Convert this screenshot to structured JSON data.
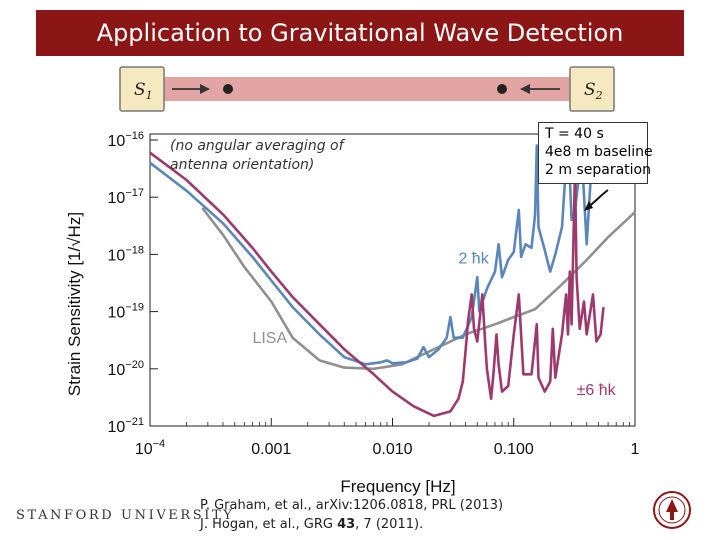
{
  "title": "Application to Gravitational Wave Detection",
  "diagram": {
    "sat1": "S",
    "sat1_sub": "1",
    "sat2": "S",
    "sat2_sub": "2"
  },
  "annotation_box": [
    "T = 40 s",
    "4e8 m baseline",
    "2 m separation"
  ],
  "note_lines": [
    "(no angular averaging of",
    "antenna orientation)"
  ],
  "logo_text": "STANFORD UNIVERSITY",
  "references": {
    "line1": "P. Graham, et al., arXiv:1206.0818, PRL (2013)",
    "line2_pre": "J. Hogan, et al., GRG ",
    "line2_vol": "43",
    "line2_post": ", 7 (2011)."
  },
  "colors": {
    "title_bg": "#8c1515",
    "blue": "#5b86b8",
    "magenta": "#9c3a6e",
    "gray": "#909090",
    "beam": "#e3a4a4",
    "sat_box": "#f6e9bf"
  },
  "chart_data": {
    "type": "line",
    "xscale": "log",
    "yscale": "log",
    "xlim": [
      0.0001,
      1
    ],
    "ylim": [
      1e-21,
      1e-16
    ],
    "xlabel": "Frequency [Hz]",
    "ylabel": "Strain Sensitivity [1/√Hz]",
    "xticks": [
      {
        "v": 0.0001,
        "base": "10",
        "exp": "−4"
      },
      {
        "v": 0.001,
        "text": "0.001"
      },
      {
        "v": 0.01,
        "text": "0.010"
      },
      {
        "v": 0.1,
        "text": "0.100"
      },
      {
        "v": 1,
        "text": "1"
      }
    ],
    "yticks": [
      {
        "v": 1e-16,
        "base": "10",
        "exp": "−16"
      },
      {
        "v": 1e-17,
        "base": "10",
        "exp": "−17"
      },
      {
        "v": 1e-18,
        "base": "10",
        "exp": "−18"
      },
      {
        "v": 1e-19,
        "base": "10",
        "exp": "−19"
      },
      {
        "v": 1e-20,
        "base": "10",
        "exp": "−20"
      },
      {
        "v": 1e-21,
        "base": "10",
        "exp": "−21"
      }
    ],
    "series": [
      {
        "name": "LISA",
        "color": "#909090",
        "label_at": [
          0.0007,
          2.8e-20
        ],
        "points": [
          [
            0.00027,
            6.5e-18
          ],
          [
            0.0004,
            2.2e-18
          ],
          [
            0.0006,
            6e-19
          ],
          [
            0.001,
            1.5e-19
          ],
          [
            0.0015,
            3.5e-20
          ],
          [
            0.0025,
            1.4e-20
          ],
          [
            0.004,
            1.05e-20
          ],
          [
            0.007,
            1e-20
          ],
          [
            0.012,
            1.2e-20
          ],
          [
            0.02,
            2e-20
          ],
          [
            0.04,
            4e-20
          ],
          [
            0.07,
            6e-20
          ],
          [
            0.1,
            8e-20
          ],
          [
            0.15,
            1.1e-19
          ],
          [
            0.25,
            3e-19
          ],
          [
            0.4,
            8e-19
          ],
          [
            0.6,
            2e-18
          ],
          [
            1,
            5.5e-18
          ]
        ]
      },
      {
        "name": "2 ħk",
        "color": "#5b86b8",
        "label_at": [
          0.035,
          7e-19
        ],
        "points": [
          [
            0.0001,
            4e-17
          ],
          [
            0.0002,
            1.3e-17
          ],
          [
            0.0004,
            3.5e-18
          ],
          [
            0.0007,
            9e-19
          ],
          [
            0.001,
            3.5e-19
          ],
          [
            0.0015,
            1.2e-19
          ],
          [
            0.0025,
            4e-20
          ],
          [
            0.004,
            1.6e-20
          ],
          [
            0.006,
            1.2e-20
          ],
          [
            0.008,
            1.3e-20
          ],
          [
            0.009,
            1.4e-20
          ],
          [
            0.01,
            1.25e-20
          ],
          [
            0.013,
            1.3e-20
          ],
          [
            0.016,
            1.5e-20
          ],
          [
            0.018,
            2.4e-20
          ],
          [
            0.02,
            1.6e-20
          ],
          [
            0.024,
            2.2e-20
          ],
          [
            0.028,
            3.5e-20
          ],
          [
            0.03,
            8e-20
          ],
          [
            0.032,
            3.5e-20
          ],
          [
            0.038,
            3.5e-20
          ],
          [
            0.045,
            8e-20
          ],
          [
            0.05,
            4e-19
          ],
          [
            0.052,
            1e-19
          ],
          [
            0.06,
            2.5e-19
          ],
          [
            0.07,
            5e-19
          ],
          [
            0.075,
            1.5e-18
          ],
          [
            0.08,
            4e-19
          ],
          [
            0.09,
            8e-19
          ],
          [
            0.1,
            1.1e-18
          ],
          [
            0.11,
            6e-18
          ],
          [
            0.115,
            9e-19
          ],
          [
            0.125,
            1.5e-18
          ],
          [
            0.14,
            1.3e-18
          ],
          [
            0.15,
            5e-18
          ],
          [
            0.155,
            8e-17
          ],
          [
            0.16,
            3e-18
          ],
          [
            0.18,
            1.2e-18
          ],
          [
            0.2,
            5e-19
          ],
          [
            0.22,
            1e-18
          ],
          [
            0.25,
            3e-18
          ],
          [
            0.28,
            1.5e-16
          ],
          [
            0.3,
            4e-18
          ],
          [
            0.32,
            6e-18
          ],
          [
            0.36,
            5e-17
          ],
          [
            0.37,
            3e-17
          ],
          [
            0.4,
            1.5e-18
          ],
          [
            0.43,
            2e-17
          ],
          [
            0.45,
            4e-17
          ]
        ]
      },
      {
        "name": "±6 ħk",
        "color": "#9c3a6e",
        "label_at": [
          0.33,
          3.5e-21
        ],
        "points": [
          [
            0.0001,
            6e-17
          ],
          [
            0.0002,
            2e-17
          ],
          [
            0.0004,
            5e-18
          ],
          [
            0.0007,
            1.3e-18
          ],
          [
            0.001,
            5e-19
          ],
          [
            0.0015,
            1.8e-19
          ],
          [
            0.0025,
            6e-20
          ],
          [
            0.004,
            2.2e-20
          ],
          [
            0.007,
            8e-21
          ],
          [
            0.01,
            4e-21
          ],
          [
            0.015,
            2.2e-21
          ],
          [
            0.022,
            1.5e-21
          ],
          [
            0.03,
            1.8e-21
          ],
          [
            0.035,
            3e-21
          ],
          [
            0.038,
            6e-21
          ],
          [
            0.04,
            2e-20
          ],
          [
            0.042,
            7e-20
          ],
          [
            0.045,
            2e-19
          ],
          [
            0.047,
            5e-20
          ],
          [
            0.05,
            3e-20
          ],
          [
            0.055,
            2e-19
          ],
          [
            0.058,
            3e-20
          ],
          [
            0.06,
            1e-20
          ],
          [
            0.065,
            3e-21
          ],
          [
            0.068,
            8e-21
          ],
          [
            0.072,
            4e-20
          ],
          [
            0.075,
            1.2e-20
          ],
          [
            0.08,
            4e-21
          ],
          [
            0.09,
            5e-21
          ],
          [
            0.1,
            4e-20
          ],
          [
            0.11,
            2e-19
          ],
          [
            0.12,
            8e-21
          ],
          [
            0.14,
            8e-21
          ],
          [
            0.155,
            6e-20
          ],
          [
            0.16,
            7e-21
          ],
          [
            0.18,
            4e-21
          ],
          [
            0.2,
            6e-21
          ],
          [
            0.21,
            5e-20
          ],
          [
            0.22,
            7e-21
          ],
          [
            0.25,
            4e-20
          ],
          [
            0.27,
            2e-19
          ],
          [
            0.28,
            4e-20
          ],
          [
            0.29,
            5e-19
          ],
          [
            0.3,
            6e-20
          ],
          [
            0.32,
            3e-17
          ],
          [
            0.33,
            4e-19
          ],
          [
            0.35,
            5e-20
          ],
          [
            0.38,
            1.5e-19
          ],
          [
            0.4,
            4e-20
          ],
          [
            0.45,
            2e-19
          ],
          [
            0.48,
            3e-20
          ],
          [
            0.52,
            4e-20
          ],
          [
            0.55,
            1.2e-19
          ]
        ]
      }
    ]
  }
}
